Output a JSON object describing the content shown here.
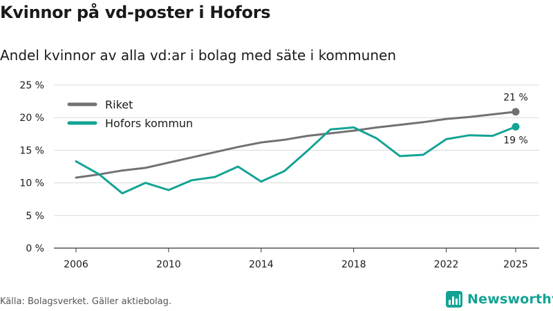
{
  "title": "Kvinnor på vd-poster i Hofors",
  "subtitle": "Andel kvinnor av alla vd:ar i bolag med säte i kommunen",
  "source": "Källa: Bolagsverket. Gäller aktiebolag.",
  "brand": "Newsworthy",
  "colors": {
    "riket": "#717073",
    "hofors": "#12a394",
    "grid": "#d9d9d9"
  },
  "chart_data": {
    "type": "line",
    "title": "Kvinnor på vd-poster i Hofors",
    "xlabel": "",
    "ylabel": "",
    "ylim": [
      0,
      25
    ],
    "xlim": [
      2006,
      2025
    ],
    "y_ticks": [
      0,
      5,
      10,
      15,
      20,
      25
    ],
    "y_tick_labels": [
      "0 %",
      "5 %",
      "10 %",
      "15 %",
      "20 %",
      "25 %"
    ],
    "x_ticks": [
      2006,
      2010,
      2014,
      2018,
      2022,
      2025
    ],
    "x_tick_labels": [
      "2006",
      "2010",
      "2014",
      "2018",
      "2022",
      "2025"
    ],
    "legend_position": "top-left",
    "x": [
      2006,
      2007,
      2008,
      2009,
      2010,
      2011,
      2012,
      2013,
      2014,
      2015,
      2016,
      2017,
      2018,
      2019,
      2020,
      2021,
      2022,
      2023,
      2024,
      2025
    ],
    "series": [
      {
        "name": "Riket",
        "color": "#717073",
        "values": [
          10.8,
          11.3,
          11.9,
          12.3,
          13.1,
          13.9,
          14.7,
          15.5,
          16.2,
          16.6,
          17.2,
          17.6,
          18.0,
          18.5,
          18.9,
          19.3,
          19.8,
          20.1,
          20.5,
          20.9
        ],
        "end_label": "21 %"
      },
      {
        "name": "Hofors kommun",
        "color": "#12a394",
        "values": [
          13.3,
          11.3,
          8.4,
          10.0,
          8.9,
          10.4,
          10.9,
          12.5,
          10.2,
          11.8,
          14.9,
          18.2,
          18.5,
          16.8,
          14.1,
          14.3,
          16.7,
          17.3,
          17.2,
          18.6
        ],
        "end_label": "19 %"
      }
    ]
  }
}
